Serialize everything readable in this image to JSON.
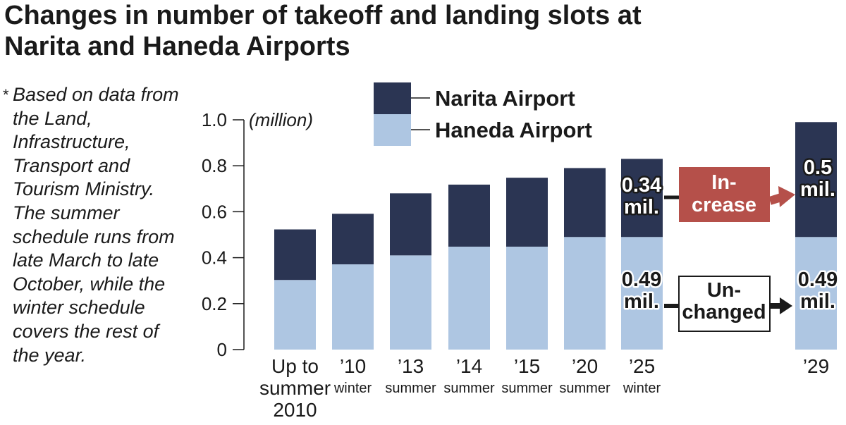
{
  "title_line1": "Changes in number of takeoff and landing slots at",
  "title_line2": "Narita and Haneda Airports",
  "note": {
    "marker": "*",
    "text": "Based on data from the Land, Infrastructure, Transport and Tourism Ministry. The summer schedule runs from late March to late October, while the winter schedule covers the rest of the year."
  },
  "colors": {
    "narita": "#2b3553",
    "haneda": "#aec6e2",
    "increase_box": "#b5504a",
    "text": "#1a1a1a"
  },
  "annotations": {
    "increase": [
      "In-",
      "crease"
    ],
    "unchanged": [
      "Un-",
      "changed"
    ],
    "narita_2025": [
      "0.34",
      "mil."
    ],
    "narita_2029": [
      "0.5",
      "mil."
    ],
    "haneda_2025": [
      "0.49",
      "mil."
    ],
    "haneda_2029": [
      "0.49",
      "mil."
    ]
  },
  "chart_data": {
    "type": "bar",
    "stacked": true,
    "title": "Changes in number of takeoff and landing slots at Narita and Haneda Airports",
    "ylabel": "(million)",
    "ylim": [
      0,
      1.0
    ],
    "yticks": [
      "0",
      "0.2",
      "0.4",
      "0.6",
      "0.8",
      "1.0"
    ],
    "legend": "top",
    "categories": [
      [
        "Up to",
        "summer",
        "2010"
      ],
      [
        "’10",
        "winter"
      ],
      [
        "’13",
        "summer"
      ],
      [
        "’14",
        "summer"
      ],
      [
        "’15",
        "summer"
      ],
      [
        "’20",
        "summer"
      ],
      [
        "’25",
        "winter"
      ],
      [
        "’29"
      ]
    ],
    "series": [
      {
        "name": "Haneda Airport",
        "values": [
          0.303,
          0.371,
          0.41,
          0.448,
          0.448,
          0.49,
          0.49,
          0.49
        ]
      },
      {
        "name": "Narita Airport",
        "values": [
          0.22,
          0.22,
          0.27,
          0.27,
          0.3,
          0.3,
          0.34,
          0.5
        ]
      }
    ]
  }
}
